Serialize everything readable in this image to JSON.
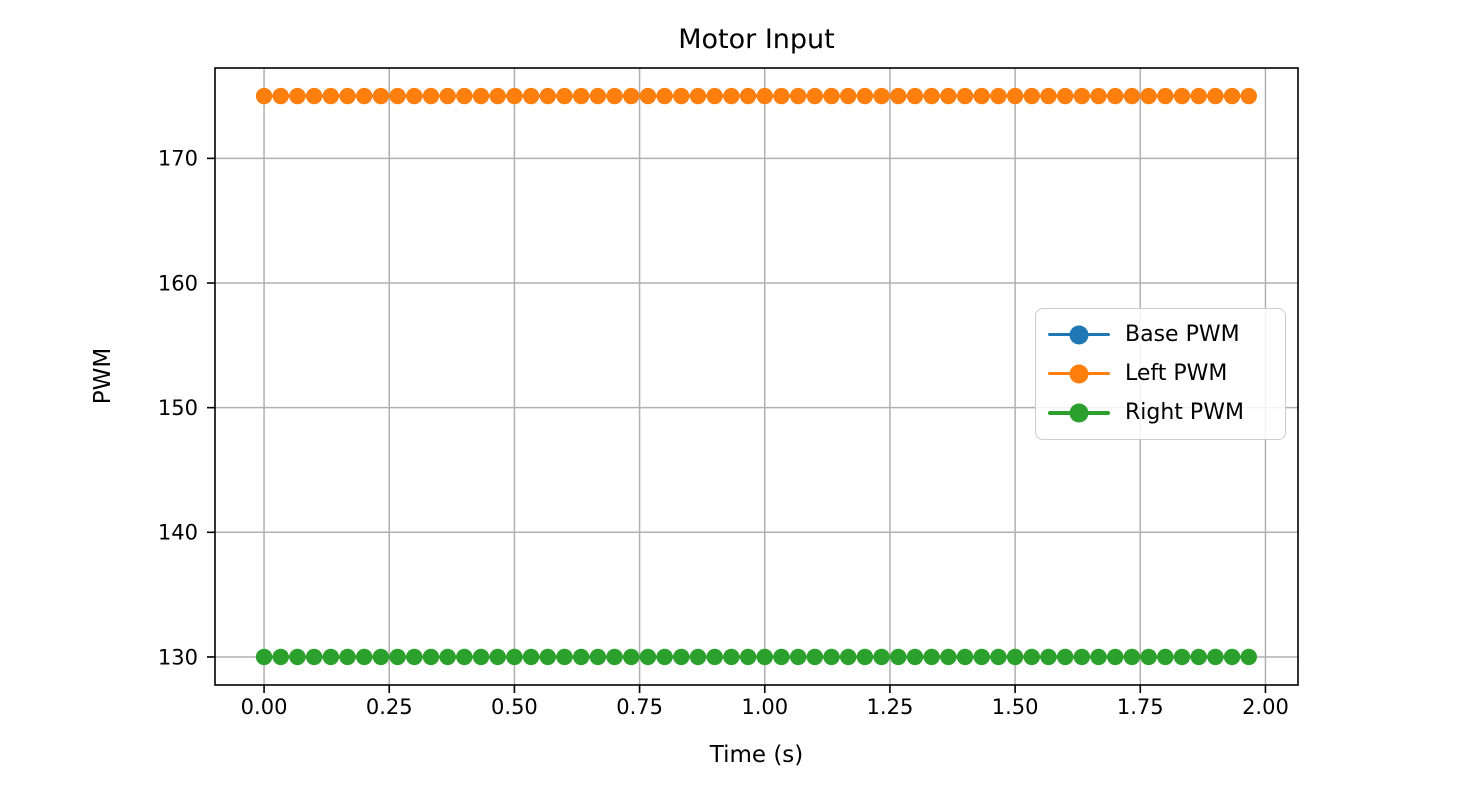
{
  "page": {
    "background": "#ffffff"
  },
  "chart_data": {
    "type": "line",
    "title": "Motor Input",
    "xlabel": "Time (s)",
    "ylabel": "PWM",
    "grid": true,
    "grid_color": "#b0b0b0",
    "spine_color": "#000000",
    "legend_position": "center right",
    "xlim": [
      -0.098,
      2.065
    ],
    "ylim": [
      127.75,
      177.25
    ],
    "xticks": [
      0,
      0.25,
      0.5,
      0.75,
      1.0,
      1.25,
      1.5,
      1.75,
      2.0
    ],
    "xtick_labels": [
      "0.00",
      "0.25",
      "0.50",
      "0.75",
      "1.00",
      "1.25",
      "1.50",
      "1.75",
      "2.00"
    ],
    "yticks": [
      130,
      140,
      150,
      160,
      170
    ],
    "ytick_labels": [
      "130",
      "140",
      "150",
      "160",
      "170"
    ],
    "x": [
      0.0,
      0.0333,
      0.0667,
      0.1,
      0.1333,
      0.1667,
      0.2,
      0.2333,
      0.2667,
      0.3,
      0.3333,
      0.3667,
      0.4,
      0.4333,
      0.4667,
      0.5,
      0.5333,
      0.5667,
      0.6,
      0.6333,
      0.6667,
      0.7,
      0.7333,
      0.7667,
      0.8,
      0.8333,
      0.8667,
      0.9,
      0.9333,
      0.9667,
      1.0,
      1.0333,
      1.0667,
      1.1,
      1.1333,
      1.1667,
      1.2,
      1.2333,
      1.2667,
      1.3,
      1.3333,
      1.3667,
      1.4,
      1.4333,
      1.4667,
      1.5,
      1.5333,
      1.5667,
      1.6,
      1.6333,
      1.6667,
      1.7,
      1.7333,
      1.7667,
      1.8,
      1.8333,
      1.8667,
      1.9,
      1.9333,
      1.9667
    ],
    "series": [
      {
        "name": "Base PWM",
        "color": "#1f77b4",
        "visible_in_plot": false,
        "values": null
      },
      {
        "name": "Left PWM",
        "color": "#ff7f0e",
        "visible_in_plot": true,
        "values": [
          175,
          175,
          175,
          175,
          175,
          175,
          175,
          175,
          175,
          175,
          175,
          175,
          175,
          175,
          175,
          175,
          175,
          175,
          175,
          175,
          175,
          175,
          175,
          175,
          175,
          175,
          175,
          175,
          175,
          175,
          175,
          175,
          175,
          175,
          175,
          175,
          175,
          175,
          175,
          175,
          175,
          175,
          175,
          175,
          175,
          175,
          175,
          175,
          175,
          175,
          175,
          175,
          175,
          175,
          175,
          175,
          175,
          175,
          175,
          175
        ]
      },
      {
        "name": "Right PWM",
        "color": "#2ca02c",
        "visible_in_plot": true,
        "values": [
          130,
          130,
          130,
          130,
          130,
          130,
          130,
          130,
          130,
          130,
          130,
          130,
          130,
          130,
          130,
          130,
          130,
          130,
          130,
          130,
          130,
          130,
          130,
          130,
          130,
          130,
          130,
          130,
          130,
          130,
          130,
          130,
          130,
          130,
          130,
          130,
          130,
          130,
          130,
          130,
          130,
          130,
          130,
          130,
          130,
          130,
          130,
          130,
          130,
          130,
          130,
          130,
          130,
          130,
          130,
          130,
          130,
          130,
          130,
          130
        ]
      }
    ]
  }
}
